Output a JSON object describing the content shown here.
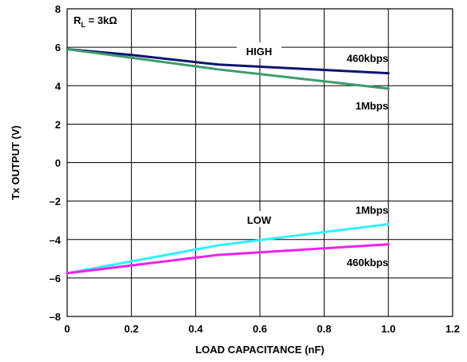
{
  "chart_data": {
    "type": "line",
    "xlabel": "LOAD CAPACITANCE (nF)",
    "ylabel": "Tx OUTPUT (V)",
    "xlim": [
      0,
      1.2
    ],
    "ylim": [
      -8,
      8
    ],
    "xticks": [
      "0",
      "0.2",
      "0.4",
      "0.6",
      "0.8",
      "1.0",
      "1.2"
    ],
    "yticks": [
      "8",
      "6",
      "4",
      "2",
      "0",
      "–2",
      "–4",
      "–6",
      "–8"
    ],
    "grid": true,
    "condition": {
      "main": "R",
      "sub": "L",
      "rest": " = 3kΩ"
    },
    "series": [
      {
        "name": "460kbps",
        "color": "#0d1570",
        "x": [
          0,
          0.2,
          0.47,
          1.0
        ],
        "y": [
          5.9,
          5.6,
          5.1,
          4.65
        ]
      },
      {
        "name": "1Mbps",
        "color": "#3d9a6c",
        "x": [
          0,
          0.47,
          1.0
        ],
        "y": [
          5.9,
          4.85,
          3.85
        ]
      },
      {
        "name": "1Mbps",
        "color": "#33f0ff",
        "x": [
          0,
          0.47,
          1.0
        ],
        "y": [
          -5.75,
          -4.3,
          -3.2
        ]
      },
      {
        "name": "460kbps",
        "color": "#ee22ee",
        "x": [
          0,
          0.47,
          1.0
        ],
        "y": [
          -5.75,
          -4.8,
          -4.25
        ]
      }
    ],
    "annotations": {
      "high": "HIGH",
      "low": "LOW"
    }
  }
}
